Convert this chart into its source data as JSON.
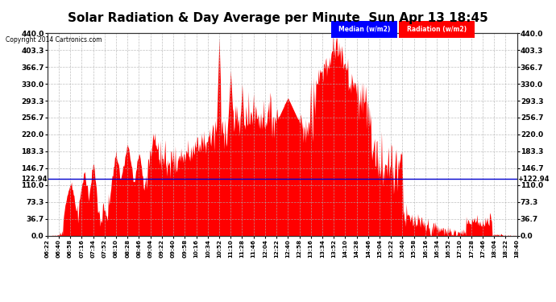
{
  "title": "Solar Radiation & Day Average per Minute  Sun Apr 13 18:45",
  "copyright": "Copyright 2014 Cartronics.com",
  "legend_median_label": "Median (w/m2)",
  "legend_radiation_label": "Radiation (w/m2)",
  "median_value": 122.94,
  "y_min": 0.0,
  "y_max": 440.0,
  "y_ticks": [
    0.0,
    36.7,
    73.3,
    110.0,
    146.7,
    183.3,
    220.0,
    256.7,
    293.3,
    330.0,
    366.7,
    403.3,
    440.0
  ],
  "background_color": "#ffffff",
  "plot_bg_color": "#ffffff",
  "grid_color": "#b0b0b0",
  "bar_color": "#ff0000",
  "median_line_color": "#0000cd",
  "title_fontsize": 11,
  "time_labels": [
    "06:22",
    "06:40",
    "06:58",
    "07:16",
    "07:34",
    "07:52",
    "08:10",
    "08:28",
    "08:46",
    "09:04",
    "09:22",
    "09:40",
    "09:58",
    "10:16",
    "10:34",
    "10:52",
    "11:10",
    "11:28",
    "11:46",
    "12:04",
    "12:22",
    "12:40",
    "12:58",
    "13:16",
    "13:34",
    "13:52",
    "14:10",
    "14:28",
    "14:46",
    "15:04",
    "15:22",
    "15:40",
    "15:58",
    "16:16",
    "16:34",
    "16:52",
    "17:10",
    "17:28",
    "17:46",
    "18:04",
    "18:22",
    "18:40"
  ]
}
